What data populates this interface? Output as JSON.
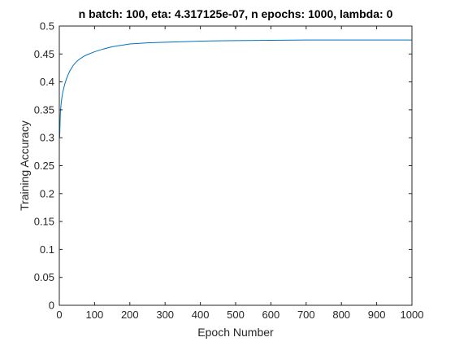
{
  "chart_data": {
    "type": "line",
    "title": "n batch: 100, eta: 4.317125e-07, n epochs: 1000, lambda: 0",
    "xlabel": "Epoch Number",
    "ylabel": "Training Accuracy",
    "xlim": [
      0,
      1000
    ],
    "ylim": [
      0,
      0.5
    ],
    "xticks": [
      0,
      100,
      200,
      300,
      400,
      500,
      600,
      700,
      800,
      900,
      1000
    ],
    "xtick_labels": [
      "0",
      "100",
      "200",
      "300",
      "400",
      "500",
      "600",
      "700",
      "800",
      "900",
      "1000"
    ],
    "yticks": [
      0,
      0.05,
      0.1,
      0.15,
      0.2,
      0.25,
      0.3,
      0.35,
      0.4,
      0.45,
      0.5
    ],
    "ytick_labels": [
      "0",
      "0.05",
      "0.1",
      "0.15",
      "0.2",
      "0.25",
      "0.3",
      "0.35",
      "0.4",
      "0.45",
      "0.5"
    ],
    "grid": false,
    "colors": {
      "series": "#0072bd",
      "axes": "#262626"
    },
    "series": [
      {
        "x": [
          1,
          3,
          5,
          8,
          10,
          15,
          20,
          25,
          30,
          40,
          50,
          60,
          70,
          80,
          100,
          120,
          150,
          180,
          200,
          250,
          300,
          350,
          400,
          450,
          500,
          600,
          700,
          800,
          900,
          1000
        ],
        "y": [
          0.3,
          0.345,
          0.36,
          0.375,
          0.382,
          0.395,
          0.405,
          0.413,
          0.42,
          0.43,
          0.437,
          0.442,
          0.446,
          0.449,
          0.454,
          0.458,
          0.463,
          0.466,
          0.468,
          0.47,
          0.471,
          0.472,
          0.473,
          0.4735,
          0.474,
          0.4745,
          0.475,
          0.475,
          0.475,
          0.475
        ]
      }
    ]
  }
}
